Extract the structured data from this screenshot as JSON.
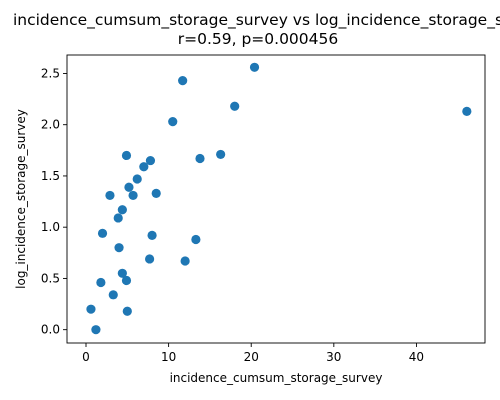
{
  "chart_data": {
    "type": "scatter",
    "title": "incidence_cumsum_storage_survey vs log_incidence_storage_s",
    "subtitle": "r=0.59, p=0.000456",
    "xlabel": "incidence_cumsum_storage_survey",
    "ylabel": "log_incidence_storage_survey",
    "xlim": [
      -2.3,
      48.3
    ],
    "ylim": [
      -0.13,
      2.68
    ],
    "xticks": [
      0,
      10,
      20,
      30,
      40
    ],
    "yticks": [
      0.0,
      0.5,
      1.0,
      1.5,
      2.0,
      2.5
    ],
    "xtick_labels": [
      "0",
      "10",
      "20",
      "30",
      "40"
    ],
    "ytick_labels": [
      "0.0",
      "0.5",
      "1.0",
      "1.5",
      "2.0",
      "2.5"
    ],
    "grid": false,
    "marker_color": "#1f77b4",
    "points": [
      {
        "x": 0.6,
        "y": 0.2
      },
      {
        "x": 1.2,
        "y": 0.0
      },
      {
        "x": 1.8,
        "y": 0.46
      },
      {
        "x": 2.0,
        "y": 0.94
      },
      {
        "x": 2.9,
        "y": 1.31
      },
      {
        "x": 3.3,
        "y": 0.34
      },
      {
        "x": 3.9,
        "y": 1.09
      },
      {
        "x": 4.0,
        "y": 0.8
      },
      {
        "x": 4.4,
        "y": 1.17
      },
      {
        "x": 4.4,
        "y": 0.55
      },
      {
        "x": 4.9,
        "y": 1.7
      },
      {
        "x": 4.9,
        "y": 0.48
      },
      {
        "x": 5.0,
        "y": 0.18
      },
      {
        "x": 5.2,
        "y": 1.39
      },
      {
        "x": 5.7,
        "y": 1.31
      },
      {
        "x": 6.2,
        "y": 1.47
      },
      {
        "x": 7.0,
        "y": 1.59
      },
      {
        "x": 7.7,
        "y": 0.69
      },
      {
        "x": 7.8,
        "y": 1.65
      },
      {
        "x": 8.0,
        "y": 0.92
      },
      {
        "x": 8.5,
        "y": 1.33
      },
      {
        "x": 10.5,
        "y": 2.03
      },
      {
        "x": 11.7,
        "y": 2.43
      },
      {
        "x": 12.0,
        "y": 0.67
      },
      {
        "x": 13.3,
        "y": 0.88
      },
      {
        "x": 13.8,
        "y": 1.67
      },
      {
        "x": 16.3,
        "y": 1.71
      },
      {
        "x": 18.0,
        "y": 2.18
      },
      {
        "x": 20.4,
        "y": 2.56
      },
      {
        "x": 46.1,
        "y": 2.13
      }
    ]
  }
}
